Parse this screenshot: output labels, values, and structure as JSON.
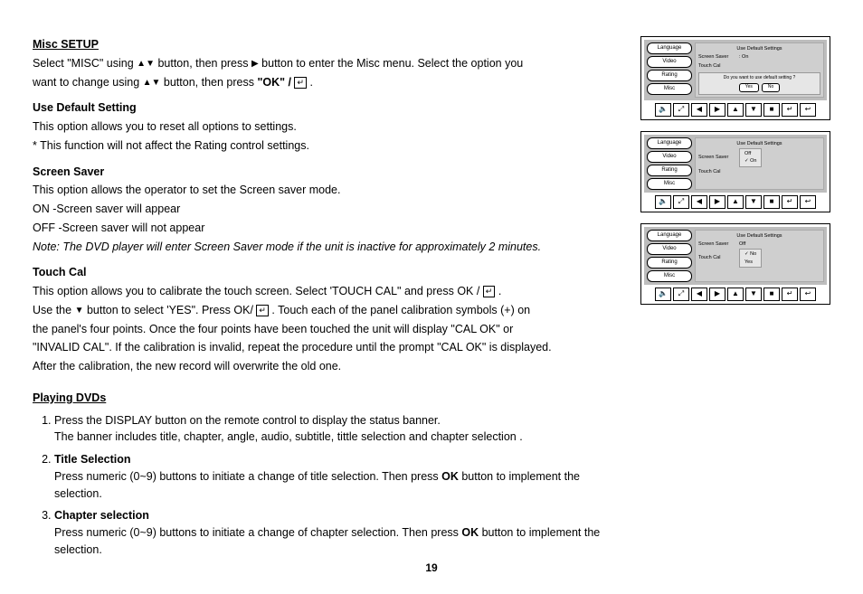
{
  "page_number": "19",
  "misc_setup": {
    "title": "Misc SETUP",
    "line1a": "Select \"MISC\" using ",
    "line1b": " button, then press ",
    "line1c": " button to enter the Misc menu. Select the option you",
    "line2a": "want to change using ",
    "line2b": " button, then press ",
    "ok_text": "\"OK\" / ",
    "dot": " .",
    "use_default": {
      "title": "Use Default Setting",
      "p1": "This option allows you to reset all options to settings.",
      "p2": "* This function will not affect the Rating control settings."
    },
    "screen_saver": {
      "title": "Screen Saver",
      "p1": "This option allows the operator to set the Screen saver mode.",
      "p2": "ON -Screen saver will appear",
      "p3": "OFF -Screen saver will not appear",
      "note": "Note: The DVD player will enter Screen Saver mode if the unit is inactive for approximately 2 minutes."
    },
    "touch_cal": {
      "title": "Touch Cal",
      "p1a": "This option allows you to calibrate the touch screen. Select 'TOUCH CAL\" and press OK / ",
      "p1b": " .",
      "p2a": " Use the ",
      "p2b": " button  to select 'YES\".  Press OK/ ",
      "p2c": " .  Touch each of the panel calibration symbols (+) on",
      "p3": "the panel's four points. Once the four points have been touched the unit will display \"CAL OK\" or",
      "p4": "\"INVALID CAL\". If the calibration is invalid, repeat the procedure until the prompt \"CAL OK\" is displayed.",
      "p5": "After the calibration, the new record will overwrite the old one."
    }
  },
  "playing_dvds": {
    "title": "Playing DVDs",
    "item1": {
      "a": "Press the DISPLAY button on the remote control to display the status banner.",
      "b": "The banner includes title, chapter, angle, audio, subtitle, tittle selection and chapter selection ."
    },
    "item2": {
      "title": "Title Selection",
      "a": "Press numeric (0~9) buttons to initiate a change of title selection. Then press ",
      "ok": "OK",
      "b": " button to implement the selection."
    },
    "item3": {
      "title": "Chapter selection",
      "a": "Press numeric (0~9) buttons to initiate a change of chapter selection. Then press ",
      "ok": "OK ",
      "b": " button to implement the selection."
    }
  },
  "screens": {
    "menu": [
      "Language",
      "Video",
      "Rating",
      "Misc"
    ],
    "s1": {
      "head": "Use Default Settings",
      "rows": [
        [
          "Screen Saver",
          ": On"
        ],
        [
          "Touch Cal",
          ""
        ]
      ],
      "dialog": "Do you want to use default setting ?",
      "yes": "Yes",
      "no": "No"
    },
    "s2": {
      "head": "Use Default Settings",
      "rows": [
        [
          "Screen Saver",
          ""
        ],
        [
          "Touch Cal",
          ""
        ]
      ],
      "opts": [
        "Off",
        "On"
      ],
      "checked": 1
    },
    "s3": {
      "head": "Use Default Settings",
      "rows": [
        [
          "Screen Saver",
          "Off"
        ],
        [
          "Touch Cal",
          ""
        ]
      ],
      "opts": [
        "No",
        "Yes"
      ],
      "checked": 0
    },
    "toolbar_icons": [
      "🔈",
      "⤢",
      "◀",
      "▶",
      "▲",
      "▼",
      "■",
      "↵",
      "↩"
    ]
  }
}
